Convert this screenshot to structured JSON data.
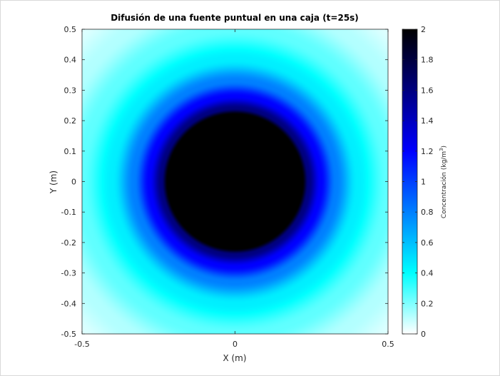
{
  "chart_data": {
    "type": "heatmap",
    "title": "Difusión de una fuente puntual en una caja (t=25s)",
    "xlabel": "X (m)",
    "ylabel": "Y (m)",
    "xlim": [
      -0.5,
      0.5
    ],
    "ylim": [
      -0.5,
      0.5
    ],
    "x_ticks": [
      -0.5,
      0,
      0.5
    ],
    "x_tick_labels": [
      "-0.5",
      "0",
      "0.5"
    ],
    "y_ticks": [
      0.5,
      0.4,
      0.3,
      0.2,
      0.1,
      0,
      -0.1,
      -0.2,
      -0.3,
      -0.4,
      -0.5
    ],
    "y_tick_labels": [
      "0.5",
      "0.4",
      "0.3",
      "0.2",
      "0.1",
      "0",
      "-0.1",
      "-0.2",
      "-0.3",
      "-0.4",
      "-0.5"
    ],
    "colorbar": {
      "label": "Concentración (kg/m",
      "label_superscript": "3",
      "label_close": ")",
      "clim": [
        0,
        2
      ],
      "ticks": [
        0,
        0.2,
        0.4,
        0.6,
        0.8,
        1,
        1.2,
        1.4,
        1.6,
        1.8,
        2
      ],
      "tick_labels": [
        "0",
        "0.2",
        "0.4",
        "0.6",
        "0.8",
        "1",
        "1.2",
        "1.4",
        "1.6",
        "1.8",
        "2"
      ]
    },
    "colormap": {
      "stops": [
        {
          "value": 0.0,
          "color": "#ffffff"
        },
        {
          "value": 0.4,
          "color": "#00ffff"
        },
        {
          "value": 1.2,
          "color": "#0000ff"
        },
        {
          "value": 2.0,
          "color": "#000000"
        }
      ]
    },
    "field": {
      "description_free": true,
      "center": [
        0,
        0
      ],
      "saturation_radius_m": 0.22,
      "peak_value": 2.0,
      "radial_profile": [
        {
          "r": 0.0,
          "value": 2.0
        },
        {
          "r": 0.22,
          "value": 2.0
        },
        {
          "r": 0.24,
          "value": 1.6
        },
        {
          "r": 0.28,
          "value": 1.2
        },
        {
          "r": 0.33,
          "value": 0.8
        },
        {
          "r": 0.4,
          "value": 0.45
        },
        {
          "r": 0.5,
          "value": 0.25
        },
        {
          "r": 0.6,
          "value": 0.12
        },
        {
          "r": 0.71,
          "value": 0.05
        }
      ]
    },
    "grid": false,
    "box": true
  }
}
